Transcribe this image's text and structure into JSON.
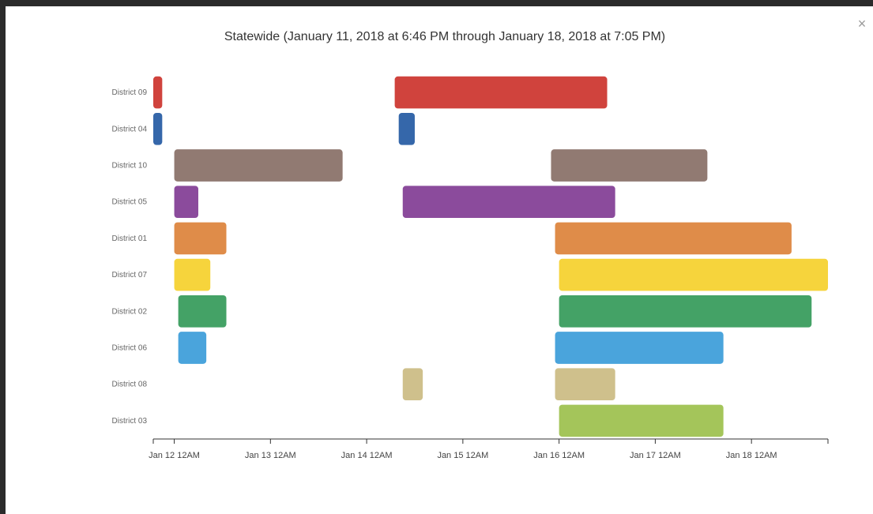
{
  "dialog": {
    "close_label": "×"
  },
  "chart_data": {
    "type": "gantt",
    "title": "Statewide (January 11, 2018 at 6:46 PM through January 18, 2018 at 7:05 PM)",
    "xlabel": "",
    "ylabel": "",
    "x_axis": {
      "type": "time",
      "range": [
        "2018-01-11 18:46",
        "2018-01-18 19:05"
      ],
      "ticks": [
        {
          "value": "2018-01-12 00:00",
          "label": "Jan 12 12AM"
        },
        {
          "value": "2018-01-13 00:00",
          "label": "Jan 13 12AM"
        },
        {
          "value": "2018-01-14 00:00",
          "label": "Jan 14 12AM"
        },
        {
          "value": "2018-01-15 00:00",
          "label": "Jan 15 12AM"
        },
        {
          "value": "2018-01-16 00:00",
          "label": "Jan 16 12AM"
        },
        {
          "value": "2018-01-17 00:00",
          "label": "Jan 17 12AM"
        },
        {
          "value": "2018-01-18 00:00",
          "label": "Jan 18 12AM"
        }
      ]
    },
    "grid": false,
    "legend": "none",
    "categories": [
      "District 09",
      "District 04",
      "District 10",
      "District 05",
      "District 01",
      "District 07",
      "District 02",
      "District 06",
      "District 08",
      "District 03"
    ],
    "series": [
      {
        "category": "District 09",
        "color": "#d0433d",
        "intervals": [
          [
            "2018-01-11 18:46",
            "2018-01-11 21:00"
          ],
          [
            "2018-01-14 07:00",
            "2018-01-16 12:00"
          ]
        ]
      },
      {
        "category": "District 04",
        "color": "#3567aa",
        "intervals": [
          [
            "2018-01-11 18:46",
            "2018-01-11 21:00"
          ],
          [
            "2018-01-14 08:00",
            "2018-01-14 12:00"
          ]
        ]
      },
      {
        "category": "District 10",
        "color": "#917a72",
        "intervals": [
          [
            "2018-01-12 00:00",
            "2018-01-13 18:00"
          ],
          [
            "2018-01-15 22:00",
            "2018-01-17 13:00"
          ]
        ]
      },
      {
        "category": "District 05",
        "color": "#8b4b9c",
        "intervals": [
          [
            "2018-01-12 00:00",
            "2018-01-12 06:00"
          ],
          [
            "2018-01-14 09:00",
            "2018-01-16 14:00"
          ]
        ]
      },
      {
        "category": "District 01",
        "color": "#df8c49",
        "intervals": [
          [
            "2018-01-12 00:00",
            "2018-01-12 13:00"
          ],
          [
            "2018-01-15 23:00",
            "2018-01-18 10:00"
          ]
        ]
      },
      {
        "category": "District 07",
        "color": "#f6d43c",
        "intervals": [
          [
            "2018-01-12 00:00",
            "2018-01-12 09:00"
          ],
          [
            "2018-01-16 00:00",
            "2018-01-18 19:05"
          ]
        ]
      },
      {
        "category": "District 02",
        "color": "#44a266",
        "intervals": [
          [
            "2018-01-12 01:00",
            "2018-01-12 13:00"
          ],
          [
            "2018-01-16 00:00",
            "2018-01-18 15:00"
          ]
        ]
      },
      {
        "category": "District 06",
        "color": "#4aa4dc",
        "intervals": [
          [
            "2018-01-12 01:00",
            "2018-01-12 08:00"
          ],
          [
            "2018-01-15 23:00",
            "2018-01-17 17:00"
          ]
        ]
      },
      {
        "category": "District 08",
        "color": "#cfc08c",
        "intervals": [
          [
            "2018-01-14 09:00",
            "2018-01-14 14:00"
          ],
          [
            "2018-01-15 23:00",
            "2018-01-16 14:00"
          ]
        ]
      },
      {
        "category": "District 03",
        "color": "#a4c55a",
        "intervals": [
          [
            "2018-01-16 00:00",
            "2018-01-17 17:00"
          ]
        ]
      }
    ]
  }
}
